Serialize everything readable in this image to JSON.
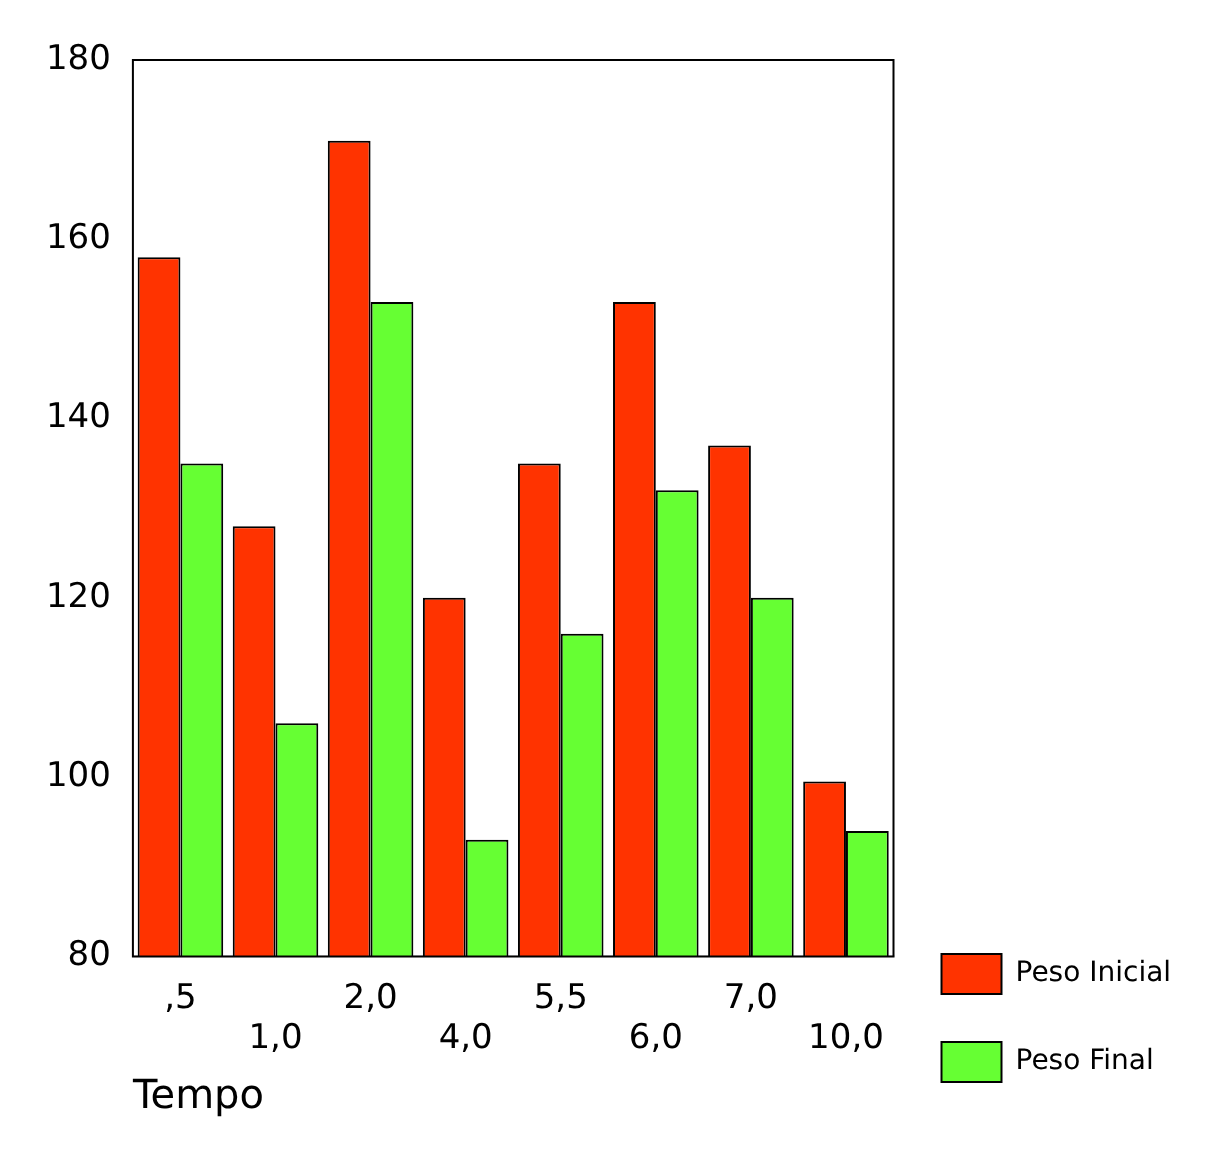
{
  "chart_data": {
    "type": "bar",
    "xlabel": "Tempo",
    "categories": [
      ",5",
      "1,0",
      "2,0",
      "4,0",
      "5,5",
      "6,0",
      "7,0",
      "10,0"
    ],
    "series": [
      {
        "name": "Peso Inicial",
        "color": "#ff3300",
        "values": [
          158,
          128,
          171,
          120,
          135,
          153,
          137,
          99.5
        ]
      },
      {
        "name": "Peso Final",
        "color": "#66ff33",
        "values": [
          135,
          106,
          153,
          93,
          116,
          132,
          120,
          94
        ]
      }
    ],
    "ylim": [
      80,
      180
    ],
    "yticks": [
      80,
      100,
      120,
      140,
      160,
      180
    ],
    "grid": false,
    "legend": "right"
  }
}
